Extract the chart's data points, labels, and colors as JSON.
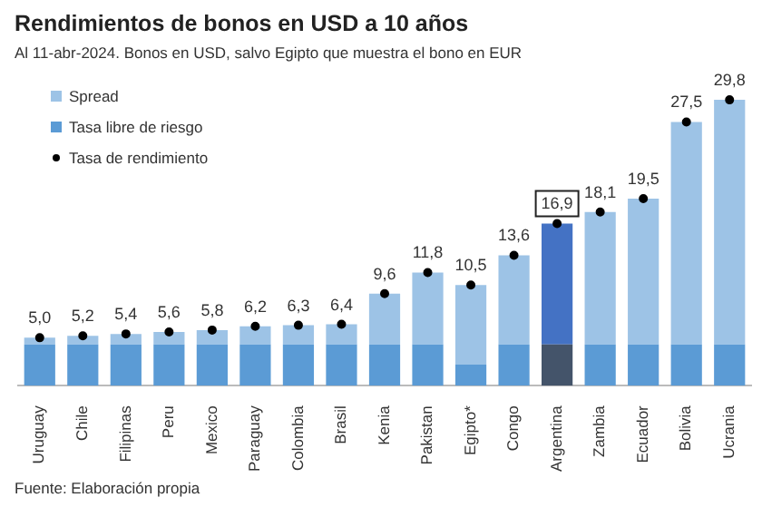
{
  "chart_data": {
    "type": "bar",
    "title": "Rendimientos de bonos en USD a 10 años",
    "subtitle": "Al 11-abr-2024. Bonos en USD, salvo Egipto que muestra el bono en EUR",
    "categories": [
      "Uruguay",
      "Chile",
      "Filipinas",
      "Peru",
      "Mexico",
      "Paraguay",
      "Colombia",
      "Brasil",
      "Kenia",
      "Pakistan",
      "Egipto*",
      "Congo",
      "Argentina",
      "Zambia",
      "Ecuador",
      "Bolivia",
      "Ucrania"
    ],
    "stacked": true,
    "tick_labels": "x",
    "grid": false,
    "legend": "left",
    "marker": "circle",
    "series": [
      {
        "name": "Tasa libre de riesgo",
        "color": "#5b9bd5",
        "colors": [
          "#5b9bd5",
          "#5b9bd5",
          "#5b9bd5",
          "#5b9bd5",
          "#5b9bd5",
          "#5b9bd5",
          "#5b9bd5",
          "#5b9bd5",
          "#5b9bd5",
          "#5b9bd5",
          "#5b9bd5",
          "#5b9bd5",
          "#44546a",
          "#5b9bd5",
          "#5b9bd5",
          "#5b9bd5",
          "#5b9bd5"
        ],
        "values": [
          4.3,
          4.3,
          4.3,
          4.3,
          4.3,
          4.3,
          4.3,
          4.3,
          4.3,
          4.3,
          2.2,
          4.3,
          4.3,
          4.3,
          4.3,
          4.3,
          4.3
        ]
      },
      {
        "name": "Spread",
        "color": "#9dc3e6",
        "colors": [
          "#9dc3e6",
          "#9dc3e6",
          "#9dc3e6",
          "#9dc3e6",
          "#9dc3e6",
          "#9dc3e6",
          "#9dc3e6",
          "#9dc3e6",
          "#9dc3e6",
          "#9dc3e6",
          "#9dc3e6",
          "#9dc3e6",
          "#4472c4",
          "#9dc3e6",
          "#9dc3e6",
          "#9dc3e6",
          "#9dc3e6"
        ],
        "values": [
          0.7,
          0.9,
          1.1,
          1.3,
          1.5,
          1.9,
          2.0,
          2.1,
          5.3,
          7.5,
          8.3,
          9.3,
          12.6,
          13.8,
          15.2,
          23.2,
          25.5
        ]
      },
      {
        "name": "Tasa de rendimiento",
        "type": "scatter",
        "color": "#000000",
        "x": [
          "Uruguay",
          "Chile",
          "Filipinas",
          "Peru",
          "Mexico",
          "Paraguay",
          "Colombia",
          "Brasil",
          "Kenia",
          "Pakistan",
          "Egipto*",
          "Congo",
          "Argentina",
          "Zambia",
          "Ecuador",
          "Bolivia",
          "Ucrania"
        ],
        "values": [
          5.0,
          5.2,
          5.4,
          5.6,
          5.8,
          6.2,
          6.3,
          6.4,
          9.6,
          11.8,
          10.5,
          13.6,
          16.9,
          18.1,
          19.5,
          27.5,
          29.8
        ],
        "value_labels": [
          "5,0",
          "5,2",
          "5,4",
          "5,6",
          "5,8",
          "6,2",
          "6,3",
          "6,4",
          "9,6",
          "11,8",
          "10,5",
          "13,6",
          "16,9",
          "18,1",
          "19,5",
          "27,5",
          "29,8"
        ]
      }
    ],
    "annotations": [
      "Fuente: Elaboración propia"
    ]
  }
}
